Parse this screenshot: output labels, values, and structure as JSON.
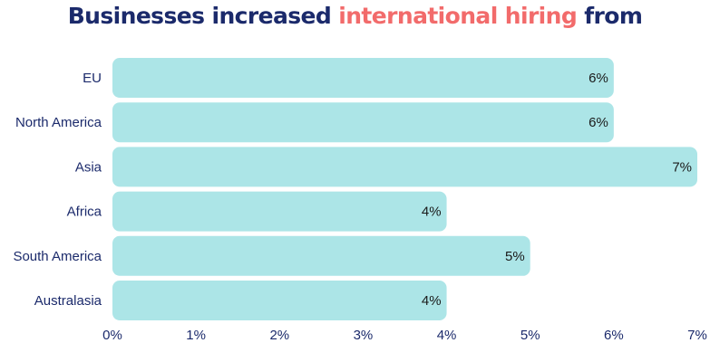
{
  "title": {
    "part1": "Businesses increased ",
    "highlight": "international hiring",
    "part2": " from"
  },
  "colors": {
    "title_text": "#1b2a6b",
    "title_highlight": "#f26b6b",
    "bar_fill": "#ace5e7",
    "axis_text": "#1b2a6b",
    "value_text": "#1a1a1a"
  },
  "chart_data": {
    "type": "bar",
    "orientation": "horizontal",
    "categories": [
      "EU",
      "North America",
      "Asia",
      "Africa",
      "South America",
      "Australasia"
    ],
    "values": [
      6,
      6,
      7,
      4,
      5,
      4
    ],
    "value_labels": [
      "6%",
      "6%",
      "7%",
      "4%",
      "5%",
      "4%"
    ],
    "xlim": [
      0,
      7
    ],
    "xticks": [
      0,
      1,
      2,
      3,
      4,
      5,
      6,
      7
    ],
    "xtick_labels": [
      "0%",
      "1%",
      "2%",
      "3%",
      "4%",
      "5%",
      "6%",
      "7%"
    ],
    "grid": false,
    "legend": "none"
  }
}
